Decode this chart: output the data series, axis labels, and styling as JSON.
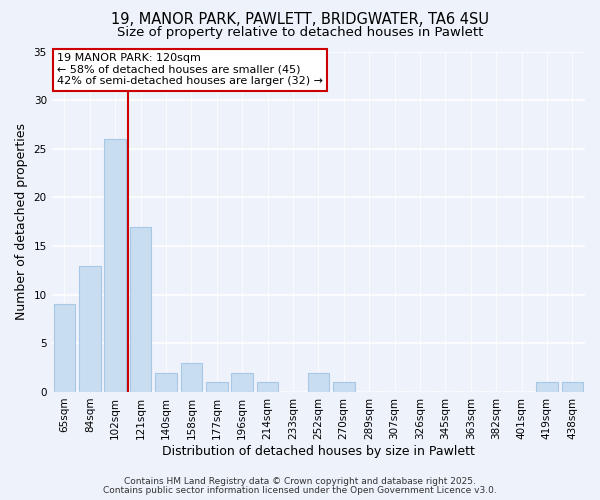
{
  "title_line1": "19, MANOR PARK, PAWLETT, BRIDGWATER, TA6 4SU",
  "title_line2": "Size of property relative to detached houses in Pawlett",
  "xlabel": "Distribution of detached houses by size in Pawlett",
  "ylabel": "Number of detached properties",
  "categories": [
    "65sqm",
    "84sqm",
    "102sqm",
    "121sqm",
    "140sqm",
    "158sqm",
    "177sqm",
    "196sqm",
    "214sqm",
    "233sqm",
    "252sqm",
    "270sqm",
    "289sqm",
    "307sqm",
    "326sqm",
    "345sqm",
    "363sqm",
    "382sqm",
    "401sqm",
    "419sqm",
    "438sqm"
  ],
  "values": [
    9,
    13,
    26,
    17,
    2,
    3,
    1,
    2,
    1,
    0,
    2,
    1,
    0,
    0,
    0,
    0,
    0,
    0,
    0,
    1,
    1
  ],
  "bar_color": "#c9ddf0",
  "bar_edge_color": "#a8c8e8",
  "vline_color": "#cc0000",
  "annotation_text": "19 MANOR PARK: 120sqm\n← 58% of detached houses are smaller (45)\n42% of semi-detached houses are larger (32) →",
  "annotation_box_color": "white",
  "annotation_box_edge_color": "#cc0000",
  "ylim": [
    0,
    35
  ],
  "yticks": [
    0,
    5,
    10,
    15,
    20,
    25,
    30,
    35
  ],
  "footer_line1": "Contains HM Land Registry data © Crown copyright and database right 2025.",
  "footer_line2": "Contains public sector information licensed under the Open Government Licence v3.0.",
  "bg_color": "#eef2fb",
  "title_fontsize": 10.5,
  "subtitle_fontsize": 9.5,
  "label_fontsize": 9,
  "tick_fontsize": 7.5,
  "footer_fontsize": 6.5,
  "annotation_fontsize": 8
}
